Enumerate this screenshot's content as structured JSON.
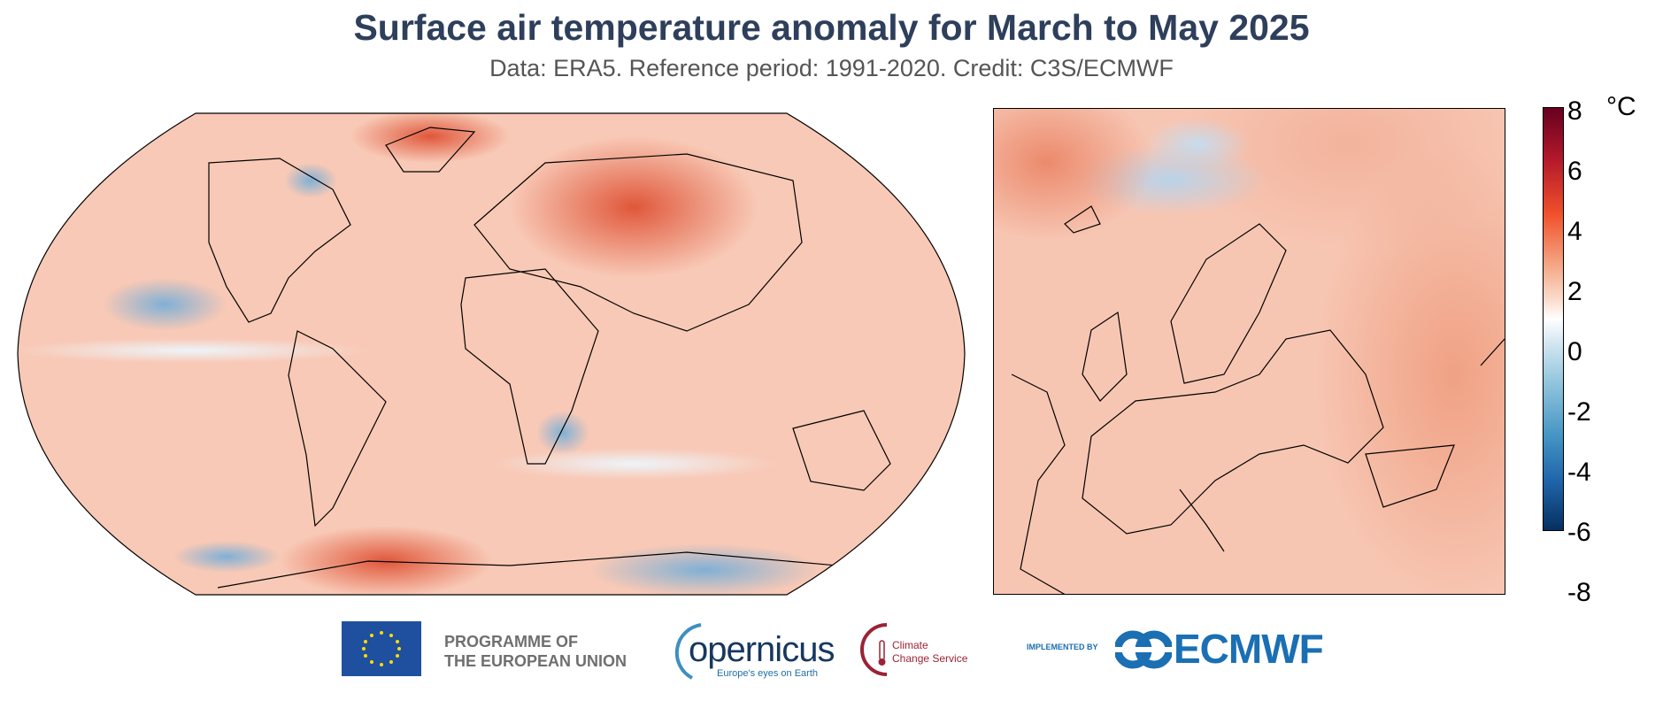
{
  "title": "Surface air temperature anomaly for March to May 2025",
  "subtitle": "Data: ERA5.  Reference period: 1991-2020.  Credit: C3S/ECMWF",
  "colorbar": {
    "unit": "°C",
    "ticks": [
      "8",
      "6",
      "4",
      "2",
      "0",
      "-2",
      "-4",
      "-6",
      "-8"
    ],
    "range": [
      -8,
      8
    ],
    "colormap": "RdBu_r",
    "colors": {
      "max": "#67001f",
      "warm": "#f0502b",
      "zero": "#ffffff",
      "cool": "#4393c3",
      "min": "#053061"
    }
  },
  "maps": {
    "global": "Robinson projection, global",
    "regional": "Europe"
  },
  "logos": {
    "eu": "PROGRAMME OF THE EUROPEAN UNION",
    "eu_line1": "PROGRAMME OF",
    "eu_line2": "THE EUROPEAN UNION",
    "copernicus": "opernicus",
    "copernicus_tagline": "Europe's eyes on Earth",
    "c3s_line1": "Climate",
    "c3s_line2": "Change Service",
    "implemented_by": "IMPLEMENTED BY",
    "ecmwf": "ECMWF"
  }
}
